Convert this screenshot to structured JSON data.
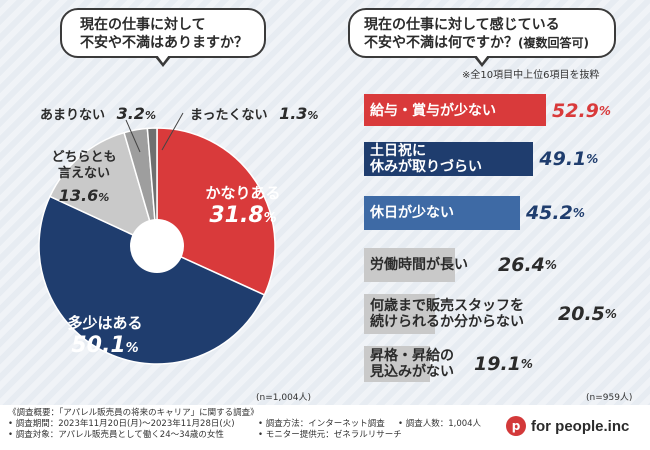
{
  "chart_data": [
    {
      "type": "pie",
      "title": "現在の仕事に対して\n不安や不満はありますか？",
      "n_label": "(n=1,004人)",
      "slices": [
        {
          "name": "かなりある",
          "value": 31.8,
          "color": "#d93a3b"
        },
        {
          "name": "多少はある",
          "value": 50.1,
          "color": "#1f3d6e"
        },
        {
          "name": "どちらとも\n言えない",
          "value": 13.6,
          "color": "#c9c9c9"
        },
        {
          "name": "あまりない",
          "value": 3.2,
          "color": "#9e9e9e"
        },
        {
          "name": "まったくない",
          "value": 1.3,
          "color": "#6f6f6f"
        }
      ]
    },
    {
      "type": "bar",
      "title": "現在の仕事に対して感じている\n不安や不満は何ですか？",
      "title_suffix": "(複数回答可)",
      "note": "※全10項目中上位6項目を抜粋",
      "n_label": "(n=959人)",
      "xlim": [
        0,
        100
      ],
      "bars": [
        {
          "label": "給与・賞与が少ない",
          "value": 52.9,
          "color": "#d93a3b",
          "text_color": "#ffffff",
          "value_color": "#d93a3b"
        },
        {
          "label": "土日祝に\n休みが取りづらい",
          "value": 49.1,
          "color": "#1f3d6e",
          "text_color": "#ffffff",
          "value_color": "#1f3d6e"
        },
        {
          "label": "休日が少ない",
          "value": 45.2,
          "color": "#3e6aa5",
          "text_color": "#ffffff",
          "value_color": "#1f3d6e"
        },
        {
          "label": "労働時間が長い",
          "value": 26.4,
          "color": "#c9c9c9",
          "text_color": "#2b2b2b",
          "value_color": "#2b2b2b"
        },
        {
          "label": "何歳まで販売スタッフを\n続けられるか分からない",
          "value": 20.5,
          "color": "#c9c9c9",
          "text_color": "#2b2b2b",
          "value_color": "#2b2b2b"
        },
        {
          "label": "昇格・昇給の\n見込みがない",
          "value": 19.1,
          "color": "#c9c9c9",
          "text_color": "#2b2b2b",
          "value_color": "#2b2b2b"
        }
      ]
    }
  ],
  "footer": {
    "line1": "《調査概要：「アパレル販売員の将来のキャリア」に関する調査》",
    "line2": "• 調査期間：2023年11月20日(月)～2023年11月28日(火)",
    "line3": "• 調査対象：アパレル販売員として働く24～34歳の女性",
    "method": "• 調査方法：インターネット調査",
    "provider": "• モニター提供元：ゼネラルリサーチ",
    "count": "• 調査人数：1,004人"
  },
  "logo": {
    "text": "for people.inc",
    "mark": "p",
    "color": "#d3393a"
  }
}
